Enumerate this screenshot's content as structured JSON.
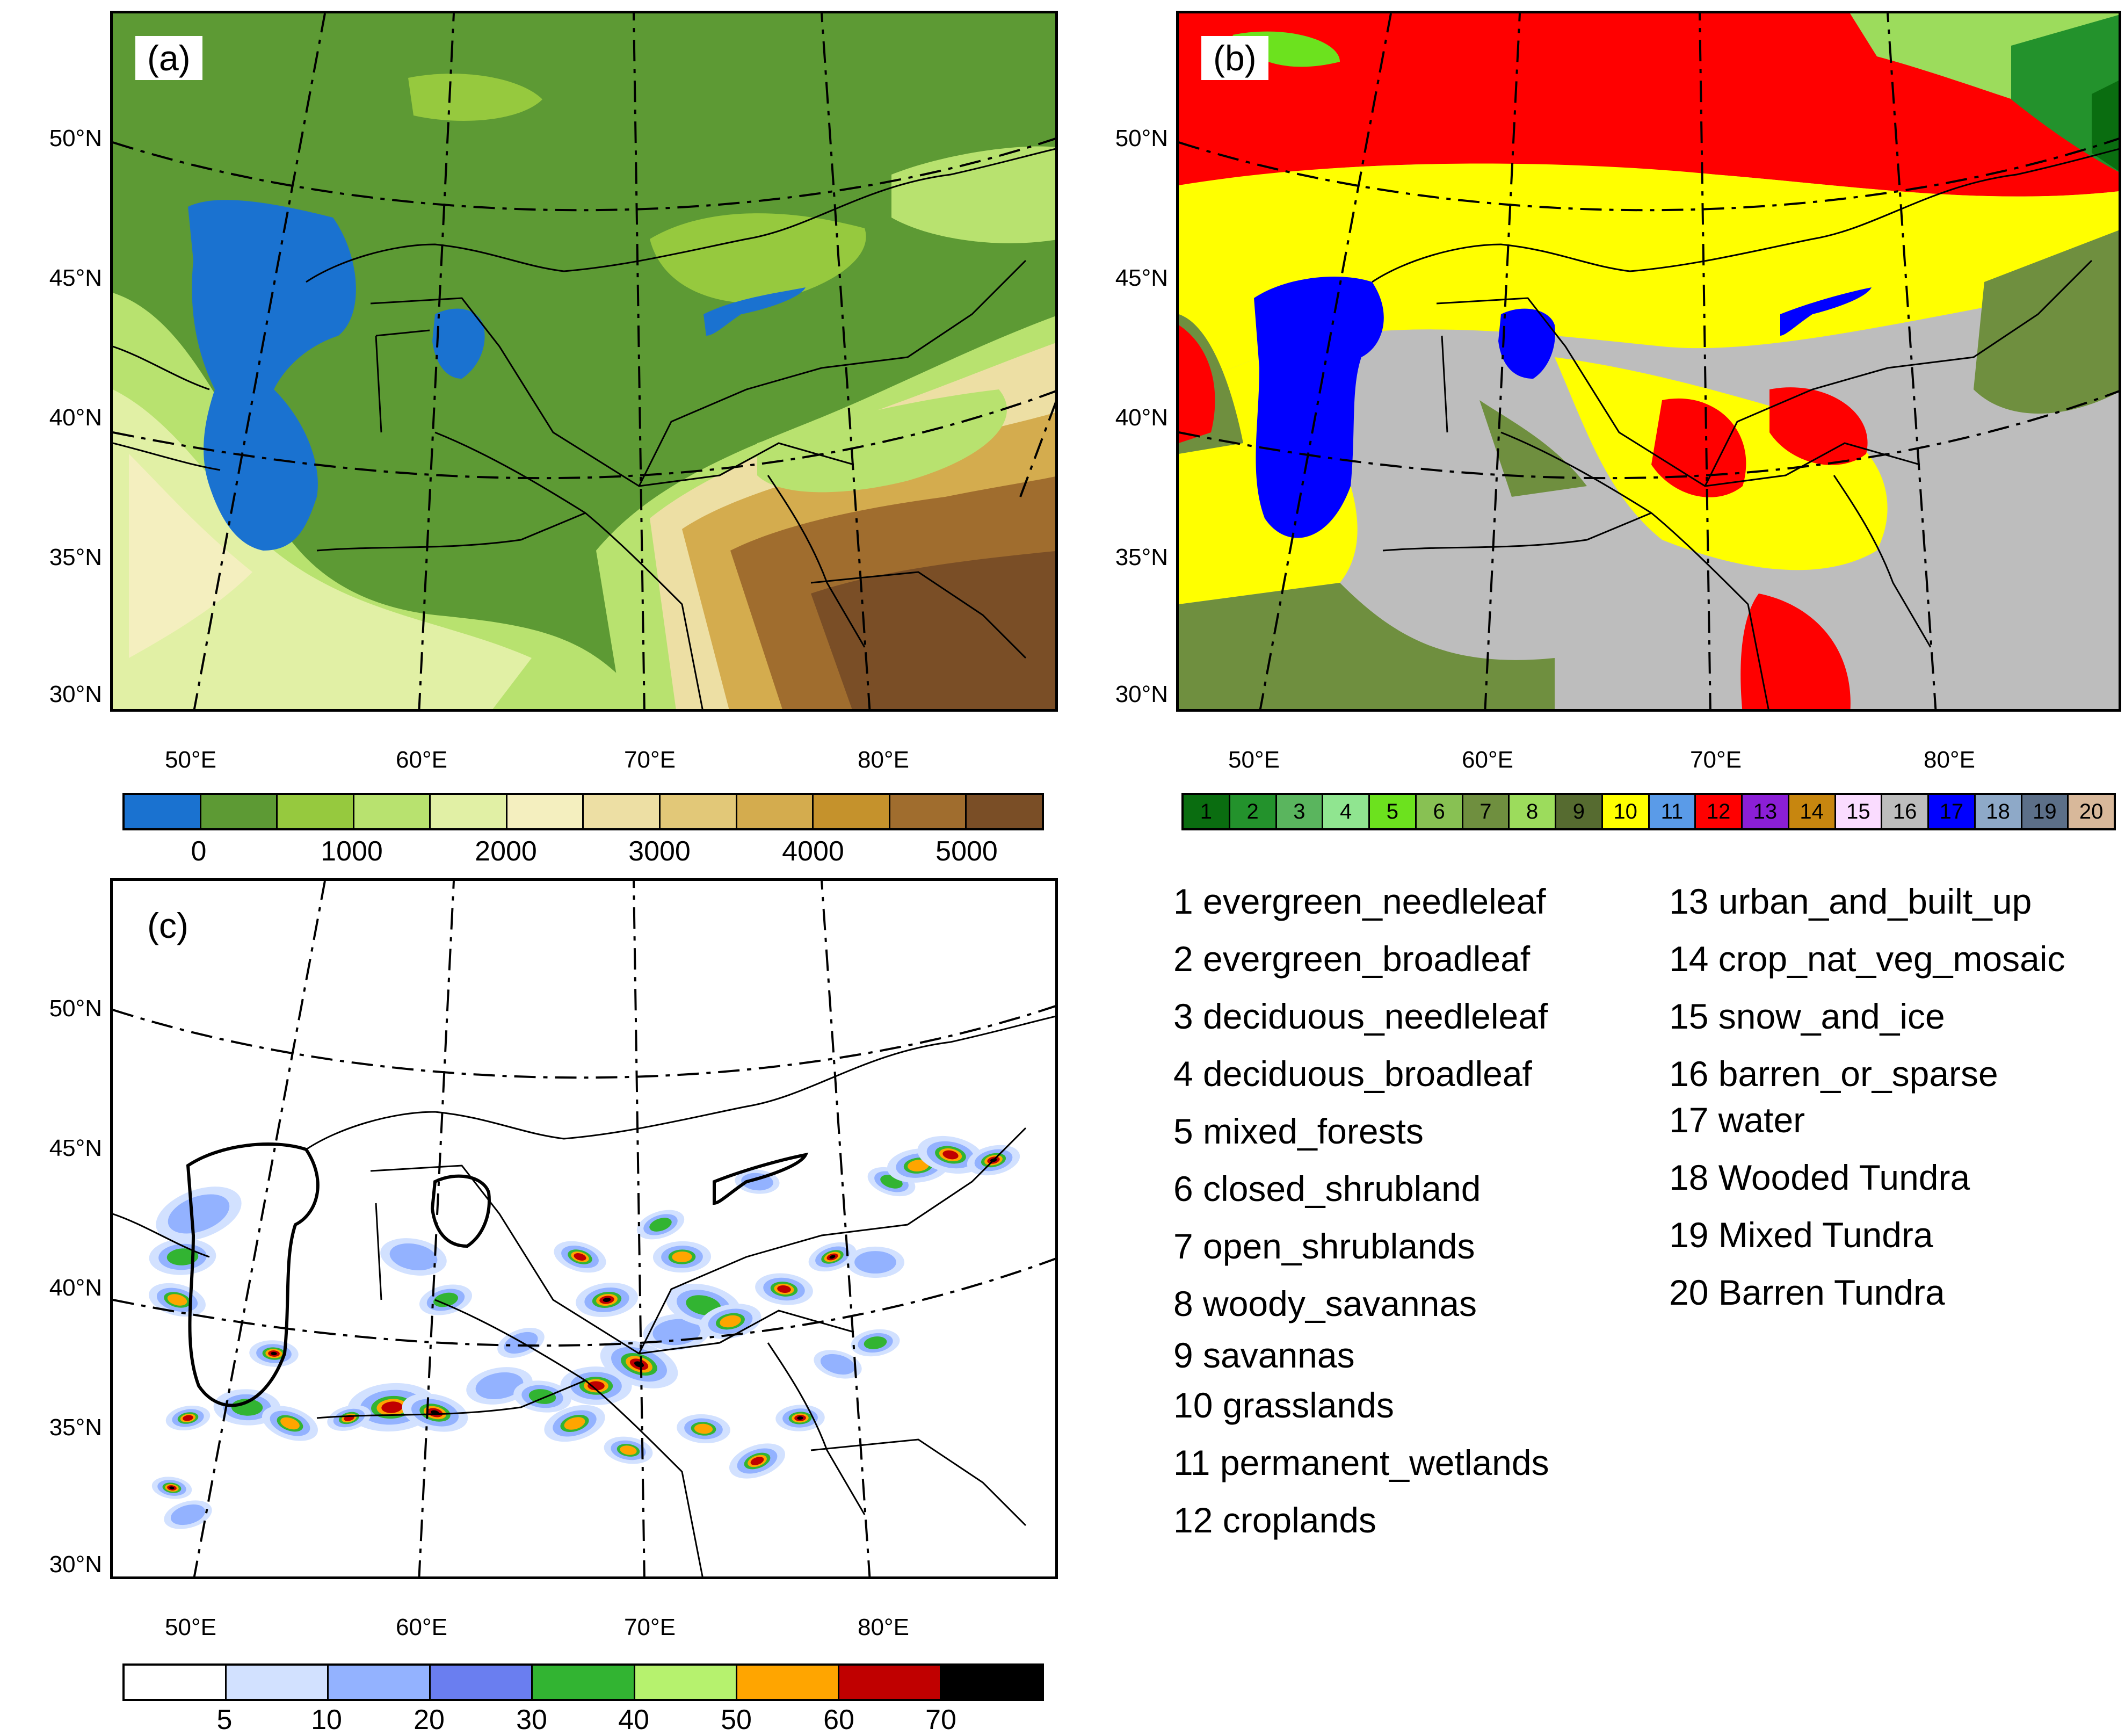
{
  "panels": {
    "a": {
      "label": "(a)"
    },
    "b": {
      "label": "(b)"
    },
    "c": {
      "label": "(c)"
    }
  },
  "lat_labels": [
    "50°N",
    "45°N",
    "40°N",
    "35°N",
    "30°N"
  ],
  "lon_labels": [
    "50°E",
    "60°E",
    "70°E",
    "80°E"
  ],
  "cbar_a": {
    "colors": [
      "#1a72d0",
      "#5d9a34",
      "#96c93e",
      "#b8e26f",
      "#e1f0a5",
      "#f4efbf",
      "#eddfa4",
      "#e2c878",
      "#d4ac4e",
      "#c5922c",
      "#a06d2e",
      "#7a4e26"
    ],
    "ticks": [
      "0",
      "1000",
      "2000",
      "3000",
      "4000",
      "5000"
    ]
  },
  "cbar_b": {
    "colors": [
      "#0a6d10",
      "#23922c",
      "#5ab55e",
      "#90e590",
      "#6ce21e",
      "#88c153",
      "#6f8f3f",
      "#9cdc5c",
      "#566b30",
      "#ffff00",
      "#5a9be8",
      "#ff0000",
      "#8b1fd6",
      "#c7860f",
      "#fadcff",
      "#bdbdbd",
      "#0000ff",
      "#8ea9c8",
      "#5c6f88",
      "#d8b89a"
    ],
    "classes": [
      "1",
      "2",
      "3",
      "4",
      "5",
      "6",
      "7",
      "8",
      "9",
      "10",
      "11",
      "12",
      "13",
      "14",
      "15",
      "16",
      "17",
      "18",
      "19",
      "20"
    ]
  },
  "cbar_c": {
    "colors": [
      "#ffffff",
      "#d2e1ff",
      "#93b2ff",
      "#6a7ef0",
      "#32b432",
      "#b6f26e",
      "#ffa500",
      "#c00000",
      "#000000"
    ],
    "ticks": [
      "5",
      "10",
      "20",
      "30",
      "40",
      "50",
      "60",
      "70"
    ]
  },
  "legend": {
    "col1": [
      "1 evergreen_needleleaf",
      "2 evergreen_broadleaf",
      "3 deciduous_needleleaf",
      "4 deciduous_broadleaf",
      "5 mixed_forests",
      "6 closed_shrubland",
      "7 open_shrublands",
      "8 woody_savannas",
      "9 savannas",
      "10 grasslands",
      "11 permanent_wetlands",
      "12 croplands"
    ],
    "col2": [
      "13 urban_and_built_up",
      "14 crop_nat_veg_mosaic",
      "15 snow_and_ice",
      "16 barren_or_sparse",
      "17 water",
      "18 Wooded Tundra",
      "19 Mixed Tundra",
      "20 Barren Tundra"
    ]
  }
}
